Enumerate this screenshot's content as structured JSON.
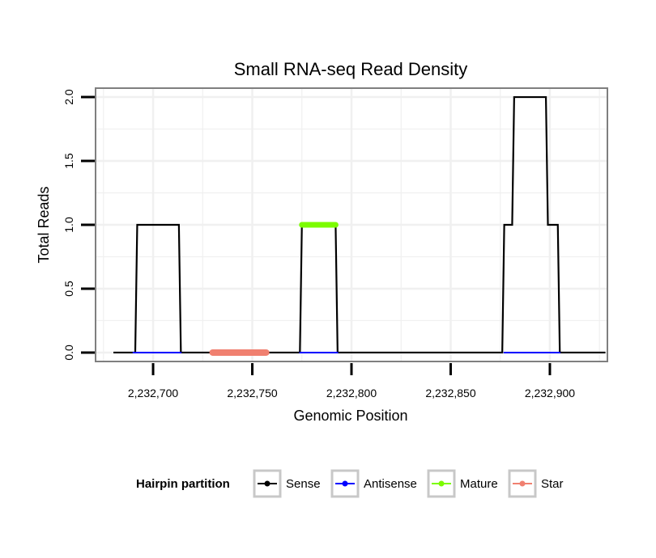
{
  "chart_data": {
    "type": "line",
    "title": "Small RNA-seq Read Density",
    "xlabel": "Genomic Position",
    "ylabel": "Total Reads",
    "xlim": [
      2232671,
      2232929
    ],
    "ylim": [
      -0.07,
      2.07
    ],
    "x_ticks": [
      2232700,
      2232750,
      2232800,
      2232850,
      2232900
    ],
    "x_tick_labels": [
      "2,232,700",
      "2,232,750",
      "2,232,800",
      "2,232,850",
      "2,232,900"
    ],
    "y_ticks": [
      0,
      0.5,
      1,
      1.5,
      2
    ],
    "y_tick_labels": [
      "0.0",
      "0.5",
      "1.0",
      "1.5",
      "2.0"
    ],
    "grid": true,
    "legend": {
      "title": "Hairpin partition",
      "position": "bottom",
      "entries": [
        "Sense",
        "Antisense",
        "Mature",
        "Star"
      ]
    },
    "series": [
      {
        "name": "Sense",
        "color": "#000000",
        "x": [
          2232680,
          2232691,
          2232692,
          2232713,
          2232714,
          2232774,
          2232775,
          2232792,
          2232793,
          2232876,
          2232877,
          2232881,
          2232882,
          2232887,
          2232888,
          2232898,
          2232899,
          2232904,
          2232905,
          2232928
        ],
        "y": [
          0,
          0,
          1,
          1,
          0,
          0,
          1,
          1,
          0,
          0,
          1,
          1,
          2,
          2,
          2,
          2,
          1,
          1,
          0,
          0
        ]
      },
      {
        "name": "Antisense",
        "color": "#0000ff",
        "segments": [
          [
            [
              2232690,
              0
            ],
            [
              2232714,
              0
            ]
          ],
          [
            [
              2232774,
              0
            ],
            [
              2232793,
              0
            ]
          ],
          [
            [
              2232877,
              0
            ],
            [
              2232905,
              0
            ]
          ]
        ]
      },
      {
        "name": "Mature",
        "color": "#7cfc00",
        "segments": [
          [
            [
              2232775,
              1
            ],
            [
              2232792,
              1
            ]
          ]
        ]
      },
      {
        "name": "Star",
        "color": "#f08070",
        "segments": [
          [
            [
              2232730,
              0
            ],
            [
              2232757,
              0
            ]
          ]
        ]
      }
    ]
  }
}
